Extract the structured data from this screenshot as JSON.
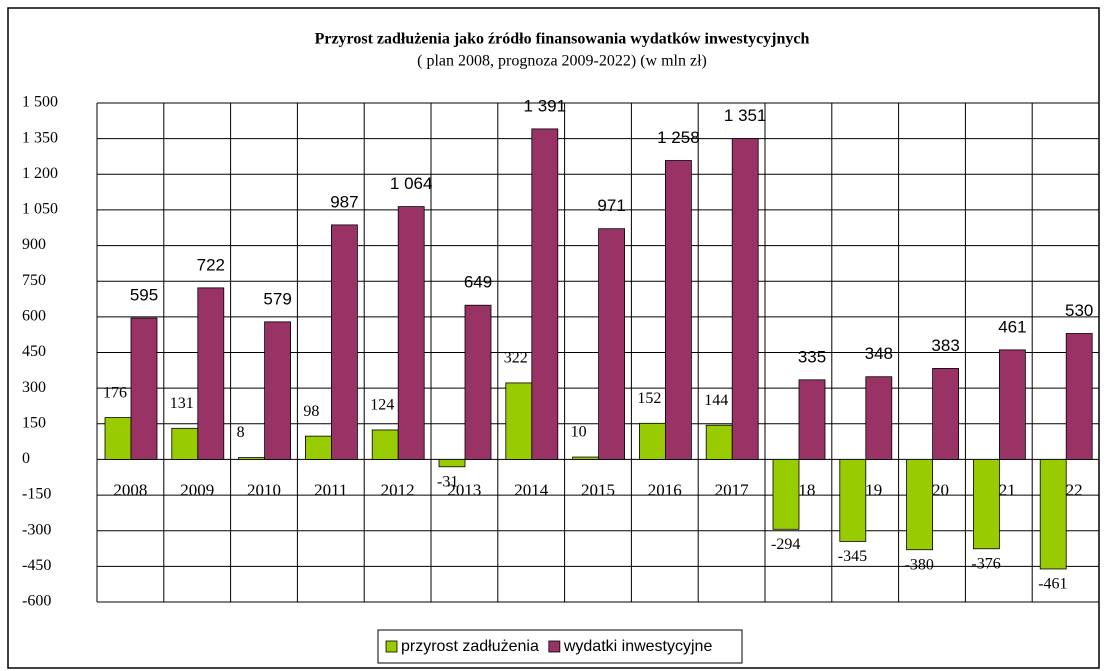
{
  "chart_data": {
    "type": "bar",
    "title": "Przyrost zadłużenia jako źródło finansowania wydatków inwestycyjnych",
    "subtitle": "( plan 2008, prognoza 2009-2022) (w mln zł)",
    "categories": [
      "2008",
      "2009",
      "2010",
      "2011",
      "2012",
      "2013",
      "2014",
      "2015",
      "2016",
      "2017",
      "2018",
      "2019",
      "2020",
      "2021",
      "2022"
    ],
    "series": [
      {
        "name": "przyrost zadłużenia",
        "color": "#99cc00",
        "values": [
          176,
          131,
          8,
          98,
          124,
          -31,
          322,
          10,
          152,
          144,
          -294,
          -345,
          -380,
          -376,
          -461
        ]
      },
      {
        "name": "wydatki inwestycyjne",
        "color": "#993366",
        "values": [
          595,
          722,
          579,
          987,
          1064,
          649,
          1391,
          971,
          1258,
          1351,
          335,
          348,
          383,
          461,
          530
        ],
        "value_labels": [
          "595",
          "722",
          "579",
          "987",
          "1 064",
          "649",
          "1 391",
          "971",
          "1 258",
          "1 351",
          "335",
          "348",
          "383",
          "461",
          "530"
        ]
      }
    ],
    "ylim": [
      -600,
      1500
    ],
    "yticks": [
      -600,
      -450,
      -300,
      -150,
      0,
      150,
      300,
      450,
      600,
      750,
      900,
      {
        "value": 1050,
        "label": "1 050"
      },
      {
        "value": 1200,
        "label": "1 200"
      },
      {
        "value": 1350,
        "label": "1 350"
      },
      {
        "value": 1500,
        "label": "1 500"
      }
    ],
    "grid": true,
    "legend": "bottom"
  }
}
